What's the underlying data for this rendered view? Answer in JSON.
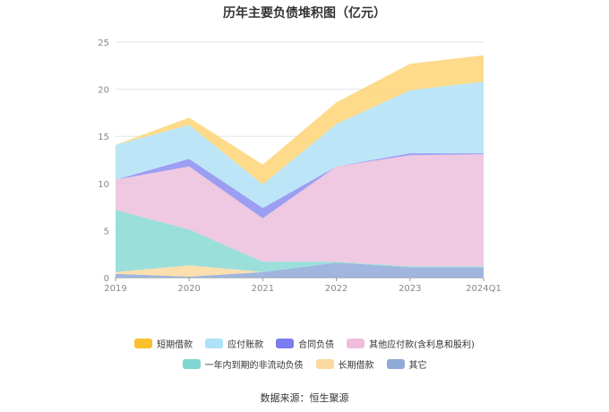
{
  "title": "历年主要负债堆积图（亿元）",
  "source": "数据来源：恒生聚源",
  "chart_data": {
    "type": "area",
    "stacked": true,
    "categories": [
      "2019",
      "2020",
      "2021",
      "2022",
      "2023",
      "2024Q1"
    ],
    "ylim": [
      0,
      25
    ],
    "yticks": [
      0,
      5,
      10,
      15,
      20,
      25
    ],
    "grid": true,
    "legend_position": "bottom",
    "series": [
      {
        "name": "其它",
        "color": "#8fa9d8",
        "values": [
          0.4,
          0.1,
          0.6,
          1.6,
          1.1,
          1.1
        ]
      },
      {
        "name": "长期借款",
        "color": "#fcd9a0",
        "values": [
          0.2,
          1.2,
          0.0,
          0.0,
          0.0,
          0.0
        ]
      },
      {
        "name": "一年内到期的非流动负债",
        "color": "#8ad9d4",
        "values": [
          6.6,
          3.8,
          1.1,
          0.1,
          0.1,
          0.1
        ]
      },
      {
        "name": "其他应付款(含利息和股利)",
        "color": "#ecbfdc",
        "values": [
          3.2,
          6.7,
          4.6,
          10.1,
          11.8,
          11.9
        ]
      },
      {
        "name": "合同负债",
        "color": "#8b8df0",
        "values": [
          0.0,
          0.8,
          1.1,
          0.0,
          0.2,
          0.1
        ]
      },
      {
        "name": "应付账款",
        "color": "#b0e2f7",
        "values": [
          3.7,
          3.6,
          2.5,
          4.5,
          6.7,
          7.6
        ]
      },
      {
        "name": "短期借款",
        "color": "#fdd577",
        "values": [
          0.0,
          0.8,
          2.1,
          2.3,
          2.8,
          2.8
        ]
      }
    ]
  },
  "legend": {
    "row1": [
      {
        "label": "短期借款",
        "color": "#fbc02d"
      },
      {
        "label": "应付账款",
        "color": "#aee2f8"
      },
      {
        "label": "合同负债",
        "color": "#7b7cf0"
      },
      {
        "label": "其他应付款(含利息和股利)",
        "color": "#efbddb"
      }
    ],
    "row2": [
      {
        "label": "一年内到期的非流动负债",
        "color": "#7fd6d0"
      },
      {
        "label": "长期借款",
        "color": "#fcd9a0"
      },
      {
        "label": "其它",
        "color": "#8fa9d8"
      }
    ]
  }
}
